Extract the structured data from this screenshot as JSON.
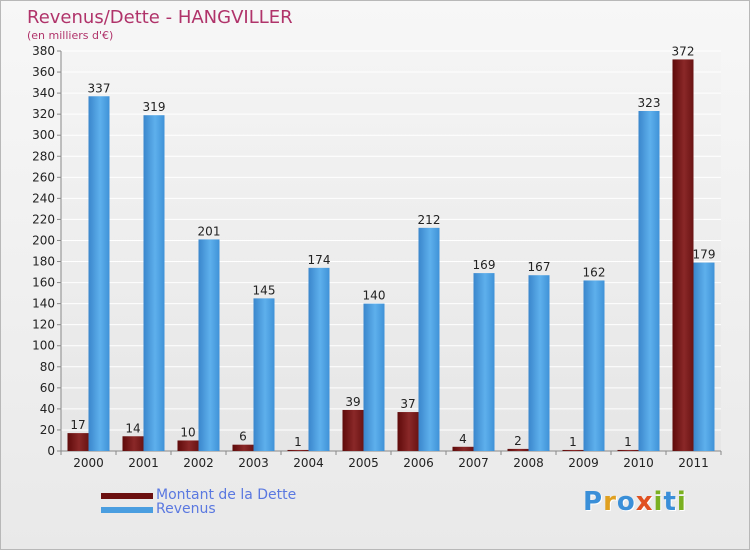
{
  "colors": {
    "debt": "#7a1f1f",
    "revenue": "#4a9ee0",
    "title": "#b0336a",
    "legend_text": "#5a78e0"
  },
  "chart_data": {
    "type": "bar",
    "title": "Revenus/Dette - HANGVILLER",
    "subtitle": "(en milliers d'€)",
    "xlabel": "",
    "ylabel": "",
    "ylim": [
      0,
      380
    ],
    "ytick_step": 20,
    "grid": true,
    "categories": [
      "2000",
      "2001",
      "2002",
      "2003",
      "2004",
      "2005",
      "2006",
      "2007",
      "2008",
      "2009",
      "2010",
      "2011"
    ],
    "series": [
      {
        "name": "Montant de la Dette",
        "color": "#7a1f1f",
        "values": [
          17,
          14,
          10,
          6,
          1,
          39,
          37,
          4,
          2,
          1,
          1,
          372
        ]
      },
      {
        "name": "Revenus",
        "color": "#4a9ee0",
        "values": [
          337,
          319,
          201,
          145,
          174,
          140,
          212,
          169,
          167,
          162,
          323,
          179
        ]
      }
    ],
    "legend_position": "bottom-left"
  },
  "brand": {
    "letters": [
      "P",
      "r",
      "o",
      "x",
      "i",
      "t",
      "i"
    ],
    "colors": [
      "#3a8fd8",
      "#e0a020",
      "#3a8fd8",
      "#e05020",
      "#7ab020",
      "#3a8fd8",
      "#7ab020"
    ]
  }
}
